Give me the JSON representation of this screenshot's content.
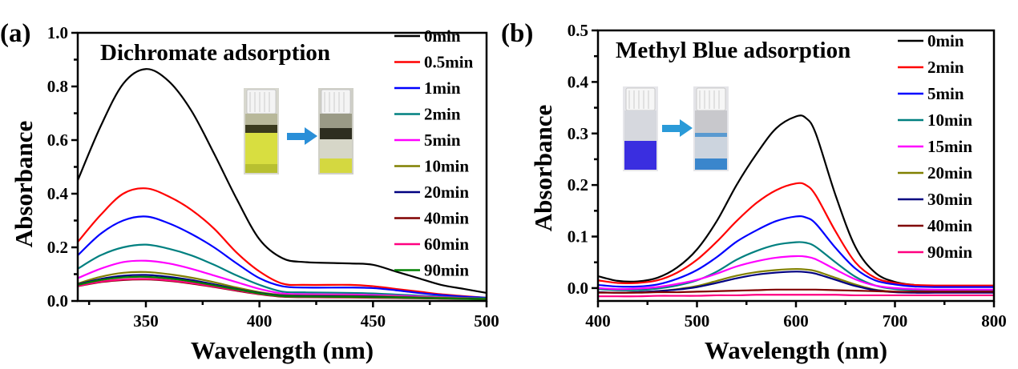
{
  "chart_data": [
    {
      "type": "line",
      "panel_label": "(a)",
      "title": "Dichromate adsorption",
      "xlabel": "Wavelength (nm)",
      "ylabel": "Absorbance",
      "xlim": [
        320,
        500
      ],
      "ylim": [
        0.0,
        1.0
      ],
      "xticks": [
        "350",
        "400",
        "450",
        "500"
      ],
      "yticks": [
        "0.0",
        "0.2",
        "0.4",
        "0.6",
        "0.8",
        "1.0"
      ],
      "grid": false,
      "legend_position": "top-right",
      "inset": "photo of yellow dichromate solution vial before and after adsorption with arrow",
      "x": [
        320,
        330,
        340,
        350,
        360,
        370,
        380,
        390,
        400,
        410,
        420,
        440,
        450,
        460,
        470,
        480,
        490,
        500
      ],
      "series": [
        {
          "name": "0min",
          "color": "#000000",
          "values": [
            0.45,
            0.65,
            0.81,
            0.865,
            0.82,
            0.71,
            0.55,
            0.38,
            0.23,
            0.16,
            0.145,
            0.14,
            0.135,
            0.11,
            0.085,
            0.06,
            0.045,
            0.03
          ]
        },
        {
          "name": "0.5min",
          "color": "#ff0000",
          "values": [
            0.22,
            0.32,
            0.4,
            0.42,
            0.39,
            0.34,
            0.27,
            0.18,
            0.11,
            0.065,
            0.06,
            0.06,
            0.055,
            0.045,
            0.035,
            0.025,
            0.018,
            0.012
          ]
        },
        {
          "name": "1min",
          "color": "#0000ff",
          "values": [
            0.17,
            0.25,
            0.3,
            0.315,
            0.29,
            0.25,
            0.2,
            0.14,
            0.085,
            0.055,
            0.05,
            0.05,
            0.048,
            0.04,
            0.03,
            0.022,
            0.016,
            0.012
          ]
        },
        {
          "name": "2min",
          "color": "#008080",
          "values": [
            0.12,
            0.17,
            0.2,
            0.21,
            0.195,
            0.17,
            0.135,
            0.095,
            0.06,
            0.035,
            0.032,
            0.03,
            0.028,
            0.024,
            0.02,
            0.016,
            0.012,
            0.01
          ]
        },
        {
          "name": "5min",
          "color": "#ff00ff",
          "values": [
            0.085,
            0.12,
            0.145,
            0.15,
            0.14,
            0.12,
            0.095,
            0.07,
            0.045,
            0.028,
            0.025,
            0.024,
            0.022,
            0.02,
            0.017,
            0.014,
            0.011,
            0.008
          ]
        },
        {
          "name": "10min",
          "color": "#808000",
          "values": [
            0.065,
            0.09,
            0.105,
            0.108,
            0.1,
            0.087,
            0.07,
            0.05,
            0.033,
            0.022,
            0.02,
            0.019,
            0.018,
            0.016,
            0.014,
            0.012,
            0.01,
            0.008
          ]
        },
        {
          "name": "20min",
          "color": "#000080",
          "values": [
            0.062,
            0.082,
            0.094,
            0.097,
            0.09,
            0.078,
            0.062,
            0.045,
            0.03,
            0.02,
            0.018,
            0.017,
            0.016,
            0.014,
            0.012,
            0.01,
            0.009,
            0.007
          ]
        },
        {
          "name": "40min",
          "color": "#800000",
          "values": [
            0.055,
            0.07,
            0.078,
            0.08,
            0.075,
            0.065,
            0.052,
            0.038,
            0.025,
            0.016,
            0.014,
            0.013,
            0.012,
            0.011,
            0.01,
            0.009,
            0.008,
            0.006
          ]
        },
        {
          "name": "60min",
          "color": "#ff0080",
          "values": [
            0.056,
            0.072,
            0.08,
            0.082,
            0.077,
            0.067,
            0.054,
            0.04,
            0.026,
            0.017,
            0.015,
            0.014,
            0.013,
            0.012,
            0.011,
            0.009,
            0.008,
            0.006
          ]
        },
        {
          "name": "90min",
          "color": "#008000",
          "values": [
            0.06,
            0.078,
            0.088,
            0.09,
            0.084,
            0.073,
            0.058,
            0.043,
            0.028,
            0.018,
            0.016,
            0.015,
            0.014,
            0.013,
            0.011,
            0.01,
            0.008,
            0.007
          ]
        }
      ]
    },
    {
      "type": "line",
      "panel_label": "(b)",
      "title": "Methyl Blue adsorption",
      "xlabel": "Wavelength (nm)",
      "ylabel": "Absorbance",
      "xlim": [
        400,
        800
      ],
      "ylim": [
        -0.025,
        0.5
      ],
      "xticks": [
        "400",
        "500",
        "600",
        "700",
        "800"
      ],
      "yticks": [
        "0.0",
        "0.1",
        "0.2",
        "0.3",
        "0.4",
        "0.5"
      ],
      "grid": false,
      "legend_position": "top-right",
      "inset": "photo of blue methyl blue solution vial before and after adsorption with arrow",
      "x": [
        400,
        420,
        440,
        460,
        480,
        500,
        520,
        540,
        560,
        580,
        600,
        610,
        620,
        640,
        660,
        680,
        700,
        720,
        740,
        760,
        780,
        800
      ],
      "series": [
        {
          "name": "0min",
          "color": "#000000",
          "values": [
            0.023,
            0.014,
            0.013,
            0.02,
            0.04,
            0.075,
            0.13,
            0.2,
            0.26,
            0.31,
            0.333,
            0.33,
            0.3,
            0.18,
            0.08,
            0.03,
            0.012,
            0.006,
            0.004,
            0.003,
            0.003,
            0.003
          ]
        },
        {
          "name": "2min",
          "color": "#ff0000",
          "values": [
            0.015,
            0.01,
            0.01,
            0.015,
            0.03,
            0.055,
            0.09,
            0.13,
            0.165,
            0.19,
            0.203,
            0.2,
            0.18,
            0.11,
            0.05,
            0.02,
            0.01,
            0.006,
            0.005,
            0.005,
            0.005,
            0.005
          ]
        },
        {
          "name": "5min",
          "color": "#0000ff",
          "values": [
            0.006,
            0.003,
            0.003,
            0.007,
            0.018,
            0.035,
            0.06,
            0.09,
            0.112,
            0.13,
            0.139,
            0.137,
            0.125,
            0.078,
            0.038,
            0.015,
            0.007,
            0.003,
            0.002,
            0.002,
            0.002,
            0.002
          ]
        },
        {
          "name": "10min",
          "color": "#008080",
          "values": [
            -0.002,
            -0.004,
            -0.004,
            -0.001,
            0.005,
            0.015,
            0.032,
            0.055,
            0.072,
            0.084,
            0.089,
            0.088,
            0.08,
            0.05,
            0.022,
            0.005,
            -0.002,
            -0.004,
            -0.005,
            -0.005,
            -0.005,
            -0.005
          ]
        },
        {
          "name": "15min",
          "color": "#ff00ff",
          "values": [
            0.0,
            -0.002,
            -0.001,
            0.002,
            0.008,
            0.016,
            0.028,
            0.042,
            0.052,
            0.059,
            0.062,
            0.061,
            0.056,
            0.036,
            0.017,
            0.005,
            0.0,
            -0.002,
            -0.003,
            -0.003,
            -0.003,
            -0.003
          ]
        },
        {
          "name": "20min",
          "color": "#808000",
          "values": [
            -0.008,
            -0.009,
            -0.008,
            -0.006,
            -0.002,
            0.004,
            0.014,
            0.024,
            0.031,
            0.035,
            0.037,
            0.036,
            0.033,
            0.02,
            0.007,
            -0.003,
            -0.007,
            -0.008,
            -0.008,
            -0.008,
            -0.008,
            -0.008
          ]
        },
        {
          "name": "30min",
          "color": "#000080",
          "values": [
            -0.008,
            -0.009,
            -0.008,
            -0.006,
            -0.003,
            0.002,
            0.01,
            0.019,
            0.026,
            0.03,
            0.032,
            0.031,
            0.028,
            0.016,
            0.004,
            -0.004,
            -0.008,
            -0.009,
            -0.009,
            -0.009,
            -0.009,
            -0.009
          ]
        },
        {
          "name": "40min",
          "color": "#800000",
          "values": [
            -0.009,
            -0.009,
            -0.009,
            -0.008,
            -0.008,
            -0.007,
            -0.006,
            -0.005,
            -0.004,
            -0.003,
            -0.003,
            -0.003,
            -0.003,
            -0.004,
            -0.005,
            -0.006,
            -0.007,
            -0.007,
            -0.007,
            -0.007,
            -0.007,
            -0.007
          ]
        },
        {
          "name": "90min",
          "color": "#ff0080",
          "values": [
            -0.016,
            -0.016,
            -0.016,
            -0.015,
            -0.015,
            -0.015,
            -0.014,
            -0.014,
            -0.013,
            -0.013,
            -0.013,
            -0.013,
            -0.013,
            -0.013,
            -0.014,
            -0.014,
            -0.014,
            -0.014,
            -0.014,
            -0.014,
            -0.014,
            -0.014
          ]
        }
      ]
    }
  ]
}
